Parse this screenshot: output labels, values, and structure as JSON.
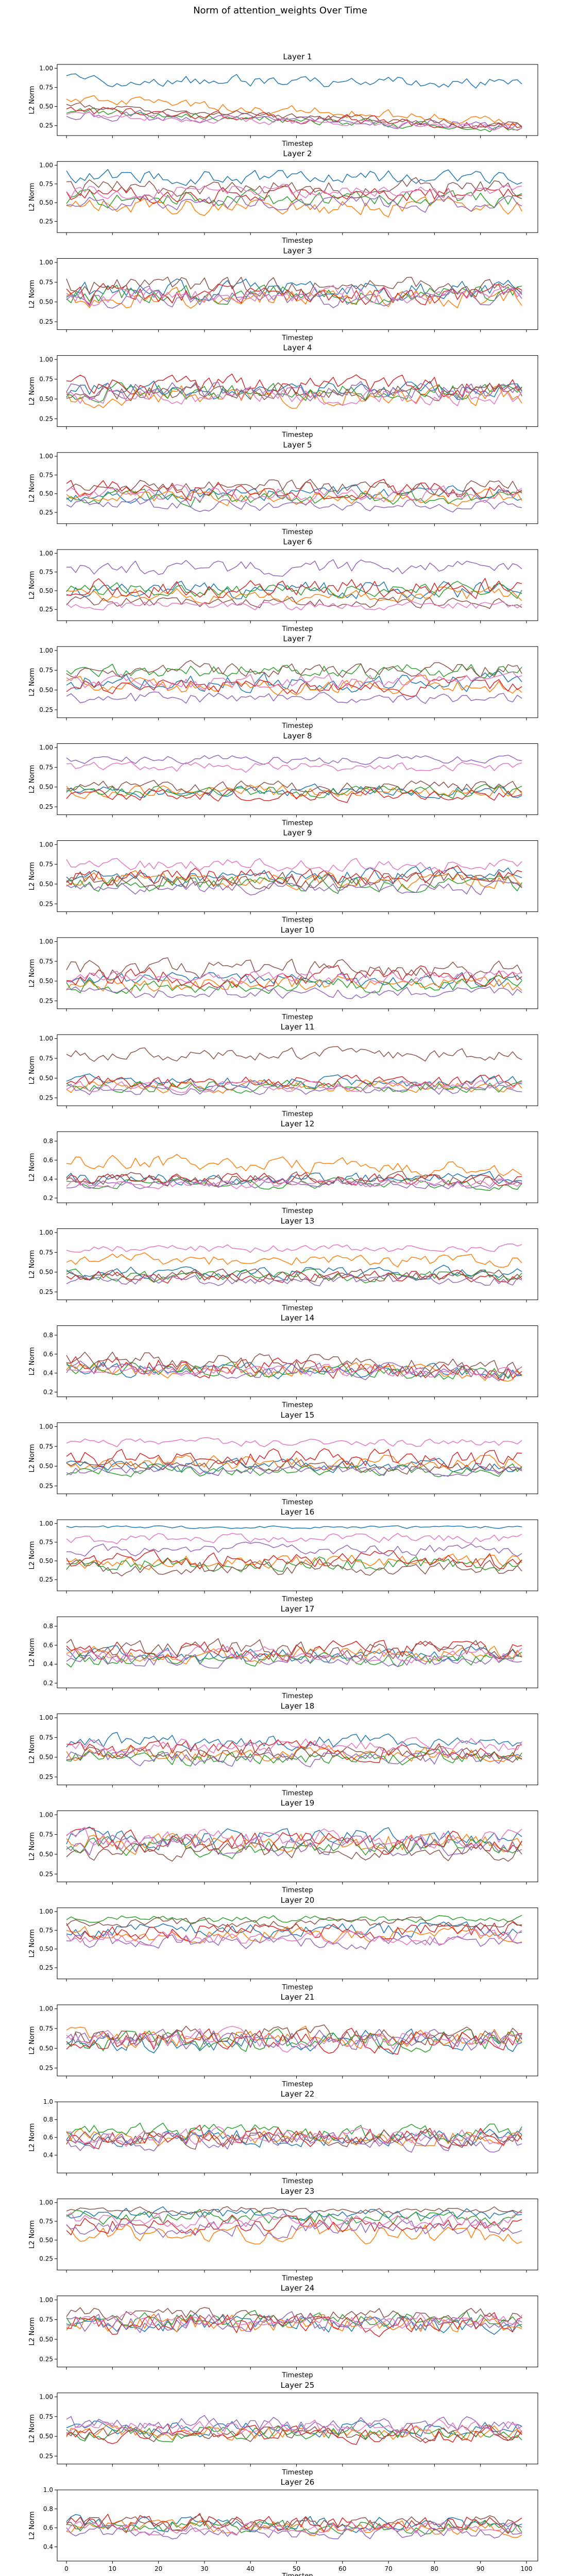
{
  "figure": {
    "title": "Norm of attention_weights Over Time",
    "xlabel": "Timestep",
    "ylabel": "L2 Norm"
  },
  "colors": [
    "#1f77b4",
    "#ff7f0e",
    "#2ca02c",
    "#d62728",
    "#9467bd",
    "#8c564b",
    "#e377c2"
  ],
  "chart_data": [
    {
      "type": "line",
      "title": "Layer 1",
      "ylim": [
        0.12,
        1.05
      ],
      "yticks": [
        1.0,
        0.75,
        0.5,
        0.25
      ],
      "x_range": [
        0,
        99
      ],
      "xticks": [],
      "series_count": 7,
      "base": [
        0.85,
        0.6,
        0.45,
        0.45,
        0.4,
        0.5,
        0.4
      ],
      "trend": [
        -0.05,
        -0.3,
        -0.25,
        -0.2,
        -0.15,
        -0.25,
        -0.2
      ],
      "amp": [
        0.12,
        0.1,
        0.08,
        0.1,
        0.1,
        0.08,
        0.08
      ]
    },
    {
      "type": "line",
      "title": "Layer 2",
      "ylim": [
        0.1,
        1.05
      ],
      "yticks": [
        1.0,
        0.75,
        0.5,
        0.25
      ],
      "x_range": [
        0,
        99
      ],
      "xticks": [],
      "series_count": 7,
      "base": [
        0.85,
        0.45,
        0.55,
        0.6,
        0.5,
        0.7,
        0.65
      ],
      "trend": [
        0,
        0,
        0,
        0,
        0,
        0,
        0
      ],
      "amp": [
        0.15,
        0.18,
        0.16,
        0.18,
        0.16,
        0.18,
        0.15
      ]
    },
    {
      "type": "line",
      "title": "Layer 3",
      "ylim": [
        0.15,
        1.05
      ],
      "yticks": [
        1.0,
        0.75,
        0.5,
        0.25
      ],
      "x_range": [
        0,
        99
      ],
      "xticks": [],
      "series_count": 7,
      "base": [
        0.65,
        0.55,
        0.6,
        0.6,
        0.55,
        0.7,
        0.6
      ],
      "trend": [
        0,
        0,
        0,
        0,
        0,
        0,
        0
      ],
      "amp": [
        0.18,
        0.18,
        0.18,
        0.2,
        0.18,
        0.18,
        0.18
      ]
    },
    {
      "type": "line",
      "title": "Layer 4",
      "ylim": [
        0.15,
        1.05
      ],
      "yticks": [
        1.0,
        0.75,
        0.5,
        0.25
      ],
      "x_range": [
        0,
        99
      ],
      "xticks": [],
      "series_count": 7,
      "base": [
        0.6,
        0.55,
        0.6,
        0.65,
        0.6,
        0.6,
        0.55
      ],
      "trend": [
        0,
        0,
        0,
        0,
        0,
        0,
        0
      ],
      "amp": [
        0.18,
        0.2,
        0.18,
        0.2,
        0.18,
        0.18,
        0.18
      ]
    },
    {
      "type": "line",
      "title": "Layer 5",
      "ylim": [
        0.1,
        1.05
      ],
      "yticks": [
        1.0,
        0.75,
        0.5,
        0.25
      ],
      "x_range": [
        0,
        99
      ],
      "xticks": [],
      "series_count": 7,
      "base": [
        0.5,
        0.45,
        0.45,
        0.55,
        0.35,
        0.6,
        0.5
      ],
      "trend": [
        0,
        0,
        0,
        0,
        0,
        0,
        0
      ],
      "amp": [
        0.15,
        0.15,
        0.15,
        0.18,
        0.12,
        0.15,
        0.15
      ]
    },
    {
      "type": "line",
      "title": "Layer 6",
      "ylim": [
        0.1,
        1.05
      ],
      "yticks": [
        1.0,
        0.75,
        0.5,
        0.25
      ],
      "x_range": [
        0,
        99
      ],
      "xticks": [],
      "series_count": 7,
      "base": [
        0.5,
        0.45,
        0.5,
        0.55,
        0.8,
        0.35,
        0.3
      ],
      "trend": [
        0,
        0,
        0,
        0,
        0,
        0,
        0
      ],
      "amp": [
        0.18,
        0.15,
        0.15,
        0.2,
        0.15,
        0.12,
        0.1
      ]
    },
    {
      "type": "line",
      "title": "Layer 7",
      "ylim": [
        0.15,
        1.05
      ],
      "yticks": [
        1.0,
        0.75,
        0.5,
        0.25
      ],
      "x_range": [
        0,
        99
      ],
      "xticks": [],
      "series_count": 7,
      "base": [
        0.6,
        0.55,
        0.75,
        0.55,
        0.4,
        0.75,
        0.6
      ],
      "trend": [
        0,
        0,
        0,
        0,
        0,
        0,
        0
      ],
      "amp": [
        0.18,
        0.15,
        0.15,
        0.15,
        0.12,
        0.15,
        0.15
      ]
    },
    {
      "type": "line",
      "title": "Layer 8",
      "ylim": [
        0.15,
        1.05
      ],
      "yticks": [
        1.0,
        0.75,
        0.5,
        0.25
      ],
      "x_range": [
        0,
        99
      ],
      "xticks": [],
      "series_count": 7,
      "base": [
        0.45,
        0.45,
        0.45,
        0.4,
        0.85,
        0.5,
        0.75
      ],
      "trend": [
        0,
        0,
        0,
        0,
        0,
        0,
        0
      ],
      "amp": [
        0.12,
        0.12,
        0.12,
        0.12,
        0.08,
        0.12,
        0.1
      ]
    },
    {
      "type": "line",
      "title": "Layer 9",
      "ylim": [
        0.15,
        1.05
      ],
      "yticks": [
        1.0,
        0.75,
        0.5,
        0.25
      ],
      "x_range": [
        0,
        99
      ],
      "xticks": [],
      "series_count": 7,
      "base": [
        0.6,
        0.55,
        0.5,
        0.6,
        0.45,
        0.55,
        0.75
      ],
      "trend": [
        0,
        0,
        0,
        0,
        0,
        0,
        0
      ],
      "amp": [
        0.15,
        0.15,
        0.15,
        0.18,
        0.12,
        0.18,
        0.12
      ]
    },
    {
      "type": "line",
      "title": "Layer 10",
      "ylim": [
        0.15,
        1.05
      ],
      "yticks": [
        1.0,
        0.75,
        0.5,
        0.25
      ],
      "x_range": [
        0,
        99
      ],
      "xticks": [],
      "series_count": 7,
      "base": [
        0.5,
        0.45,
        0.45,
        0.55,
        0.35,
        0.65,
        0.55
      ],
      "trend": [
        0,
        0,
        0,
        0,
        0,
        0,
        0
      ],
      "amp": [
        0.15,
        0.15,
        0.15,
        0.18,
        0.12,
        0.18,
        0.12
      ]
    },
    {
      "type": "line",
      "title": "Layer 11",
      "ylim": [
        0.15,
        1.05
      ],
      "yticks": [
        1.0,
        0.75,
        0.5,
        0.25
      ],
      "x_range": [
        0,
        99
      ],
      "xticks": [],
      "series_count": 7,
      "base": [
        0.45,
        0.4,
        0.4,
        0.45,
        0.35,
        0.8,
        0.4
      ],
      "trend": [
        0,
        0,
        0,
        0,
        0,
        0,
        0
      ],
      "amp": [
        0.12,
        0.12,
        0.12,
        0.12,
        0.1,
        0.12,
        0.1
      ]
    },
    {
      "type": "line",
      "title": "Layer 12",
      "ylim": [
        0.15,
        0.9
      ],
      "yticks": [
        0.8,
        0.6,
        0.4,
        0.2
      ],
      "x_range": [
        0,
        99
      ],
      "xticks": [],
      "series_count": 7,
      "base": [
        0.4,
        0.6,
        0.35,
        0.4,
        0.35,
        0.4,
        0.35
      ],
      "trend": [
        0,
        -0.1,
        0,
        0,
        0,
        0,
        0
      ],
      "amp": [
        0.1,
        0.12,
        0.08,
        0.1,
        0.08,
        0.1,
        0.08
      ]
    },
    {
      "type": "line",
      "title": "Layer 13",
      "ylim": [
        0.15,
        1.05
      ],
      "yticks": [
        1.0,
        0.75,
        0.5,
        0.25
      ],
      "x_range": [
        0,
        99
      ],
      "xticks": [],
      "series_count": 7,
      "base": [
        0.5,
        0.65,
        0.45,
        0.45,
        0.4,
        0.45,
        0.8
      ],
      "trend": [
        0,
        0,
        0,
        0,
        0,
        0,
        0
      ],
      "amp": [
        0.12,
        0.12,
        0.12,
        0.12,
        0.1,
        0.12,
        0.08
      ]
    },
    {
      "type": "line",
      "title": "Layer 14",
      "ylim": [
        0.15,
        0.9
      ],
      "yticks": [
        0.8,
        0.6,
        0.4,
        0.2
      ],
      "x_range": [
        0,
        99
      ],
      "xticks": [],
      "series_count": 7,
      "base": [
        0.45,
        0.45,
        0.45,
        0.5,
        0.45,
        0.55,
        0.45
      ],
      "trend": [
        -0.05,
        -0.05,
        -0.05,
        -0.1,
        -0.05,
        -0.1,
        -0.05
      ],
      "amp": [
        0.12,
        0.12,
        0.12,
        0.15,
        0.12,
        0.15,
        0.1
      ]
    },
    {
      "type": "line",
      "title": "Layer 15",
      "ylim": [
        0.15,
        1.05
      ],
      "yticks": [
        1.0,
        0.75,
        0.5,
        0.25
      ],
      "x_range": [
        0,
        99
      ],
      "xticks": [],
      "series_count": 7,
      "base": [
        0.5,
        0.55,
        0.45,
        0.6,
        0.45,
        0.5,
        0.8
      ],
      "trend": [
        0,
        0,
        0,
        0,
        0,
        0,
        0
      ],
      "amp": [
        0.12,
        0.15,
        0.12,
        0.18,
        0.1,
        0.12,
        0.08
      ]
    },
    {
      "type": "line",
      "title": "Layer 16",
      "ylim": [
        0.1,
        1.05
      ],
      "yticks": [
        1.0,
        0.75,
        0.5,
        0.25
      ],
      "x_range": [
        0,
        99
      ],
      "xticks": [],
      "series_count": 7,
      "base": [
        0.95,
        0.5,
        0.45,
        0.5,
        0.65,
        0.4,
        0.8
      ],
      "trend": [
        0,
        0,
        0,
        0,
        0,
        0,
        0
      ],
      "amp": [
        0.03,
        0.15,
        0.15,
        0.18,
        0.12,
        0.15,
        0.1
      ]
    },
    {
      "type": "line",
      "title": "Layer 17",
      "ylim": [
        0.15,
        0.9
      ],
      "yticks": [
        0.8,
        0.6,
        0.4,
        0.2
      ],
      "x_range": [
        0,
        99
      ],
      "xticks": [],
      "series_count": 7,
      "base": [
        0.5,
        0.5,
        0.45,
        0.55,
        0.45,
        0.55,
        0.5
      ],
      "trend": [
        0,
        0,
        0,
        0,
        0,
        0,
        0
      ],
      "amp": [
        0.12,
        0.12,
        0.12,
        0.15,
        0.12,
        0.15,
        0.12
      ]
    },
    {
      "type": "line",
      "title": "Layer 18",
      "ylim": [
        0.15,
        1.05
      ],
      "yticks": [
        1.0,
        0.75,
        0.5,
        0.25
      ],
      "x_range": [
        0,
        99
      ],
      "xticks": [],
      "series_count": 7,
      "base": [
        0.7,
        0.55,
        0.5,
        0.6,
        0.5,
        0.55,
        0.65
      ],
      "trend": [
        0,
        0,
        0,
        0,
        0,
        0,
        0
      ],
      "amp": [
        0.15,
        0.15,
        0.15,
        0.18,
        0.15,
        0.15,
        0.15
      ]
    },
    {
      "type": "line",
      "title": "Layer 19",
      "ylim": [
        0.15,
        1.05
      ],
      "yticks": [
        1.0,
        0.75,
        0.5,
        0.25
      ],
      "x_range": [
        0,
        99
      ],
      "xticks": [],
      "series_count": 7,
      "base": [
        0.7,
        0.65,
        0.6,
        0.65,
        0.6,
        0.55,
        0.7
      ],
      "trend": [
        0,
        0,
        0,
        0,
        0,
        0,
        0
      ],
      "amp": [
        0.18,
        0.2,
        0.18,
        0.2,
        0.18,
        0.18,
        0.18
      ]
    },
    {
      "type": "line",
      "title": "Layer 20",
      "ylim": [
        0.1,
        1.05
      ],
      "yticks": [
        1.0,
        0.75,
        0.5,
        0.25
      ],
      "x_range": [
        0,
        99
      ],
      "xticks": [],
      "series_count": 7,
      "base": [
        0.75,
        0.7,
        0.9,
        0.75,
        0.6,
        0.85,
        0.65
      ],
      "trend": [
        0,
        0,
        0,
        0,
        0,
        0,
        0
      ],
      "amp": [
        0.15,
        0.15,
        0.08,
        0.18,
        0.15,
        0.1,
        0.15
      ]
    },
    {
      "type": "line",
      "title": "Layer 21",
      "ylim": [
        0.15,
        1.05
      ],
      "yticks": [
        1.0,
        0.75,
        0.5,
        0.25
      ],
      "x_range": [
        0,
        99
      ],
      "xticks": [],
      "series_count": 7,
      "base": [
        0.6,
        0.65,
        0.6,
        0.6,
        0.6,
        0.65,
        0.6
      ],
      "trend": [
        0,
        0,
        0,
        0,
        0,
        0,
        0
      ],
      "amp": [
        0.2,
        0.2,
        0.2,
        0.22,
        0.2,
        0.2,
        0.2
      ]
    },
    {
      "type": "line",
      "title": "Layer 22",
      "ylim": [
        0.2,
        1.0
      ],
      "yticks": [
        1.0,
        0.8,
        0.6,
        0.4
      ],
      "x_range": [
        0,
        99
      ],
      "xticks": [],
      "series_count": 7,
      "base": [
        0.6,
        0.6,
        0.65,
        0.6,
        0.55,
        0.6,
        0.6
      ],
      "trend": [
        0,
        0,
        0,
        0,
        0,
        0,
        0
      ],
      "amp": [
        0.15,
        0.15,
        0.15,
        0.18,
        0.15,
        0.15,
        0.15
      ]
    },
    {
      "type": "line",
      "title": "Layer 23",
      "ylim": [
        0.1,
        1.05
      ],
      "yticks": [
        1.0,
        0.75,
        0.5,
        0.25
      ],
      "x_range": [
        0,
        99
      ],
      "xticks": [],
      "series_count": 7,
      "base": [
        0.85,
        0.6,
        0.8,
        0.7,
        0.65,
        0.9,
        0.75
      ],
      "trend": [
        0,
        0,
        0,
        0,
        0,
        0,
        0
      ],
      "amp": [
        0.12,
        0.2,
        0.15,
        0.2,
        0.18,
        0.08,
        0.15
      ]
    },
    {
      "type": "line",
      "title": "Layer 24",
      "ylim": [
        0.15,
        1.05
      ],
      "yticks": [
        1.0,
        0.75,
        0.5,
        0.25
      ],
      "x_range": [
        0,
        99
      ],
      "xticks": [],
      "series_count": 7,
      "base": [
        0.7,
        0.7,
        0.75,
        0.7,
        0.7,
        0.8,
        0.75
      ],
      "trend": [
        0,
        0,
        0,
        0,
        0,
        0,
        0
      ],
      "amp": [
        0.18,
        0.18,
        0.15,
        0.2,
        0.18,
        0.15,
        0.15
      ]
    },
    {
      "type": "line",
      "title": "Layer 25",
      "ylim": [
        0.15,
        1.05
      ],
      "yticks": [
        1.0,
        0.75,
        0.5,
        0.25
      ],
      "x_range": [
        0,
        99
      ],
      "xticks": [],
      "series_count": 7,
      "base": [
        0.6,
        0.55,
        0.55,
        0.55,
        0.65,
        0.55,
        0.6
      ],
      "trend": [
        0,
        0,
        0,
        0,
        0,
        0,
        0
      ],
      "amp": [
        0.15,
        0.15,
        0.15,
        0.18,
        0.15,
        0.15,
        0.15
      ]
    },
    {
      "type": "line",
      "title": "Layer 26",
      "ylim": [
        0.25,
        1.0
      ],
      "yticks": [
        1.0,
        0.8,
        0.6,
        0.4
      ],
      "x_range": [
        0,
        99
      ],
      "xticks": [
        0,
        10,
        20,
        30,
        40,
        50,
        60,
        70,
        80,
        90,
        100
      ],
      "series_count": 7,
      "base": [
        0.65,
        0.6,
        0.6,
        0.65,
        0.55,
        0.65,
        0.6
      ],
      "trend": [
        0,
        0,
        0,
        0,
        0,
        0,
        0
      ],
      "amp": [
        0.12,
        0.12,
        0.12,
        0.15,
        0.1,
        0.12,
        0.1
      ]
    }
  ]
}
